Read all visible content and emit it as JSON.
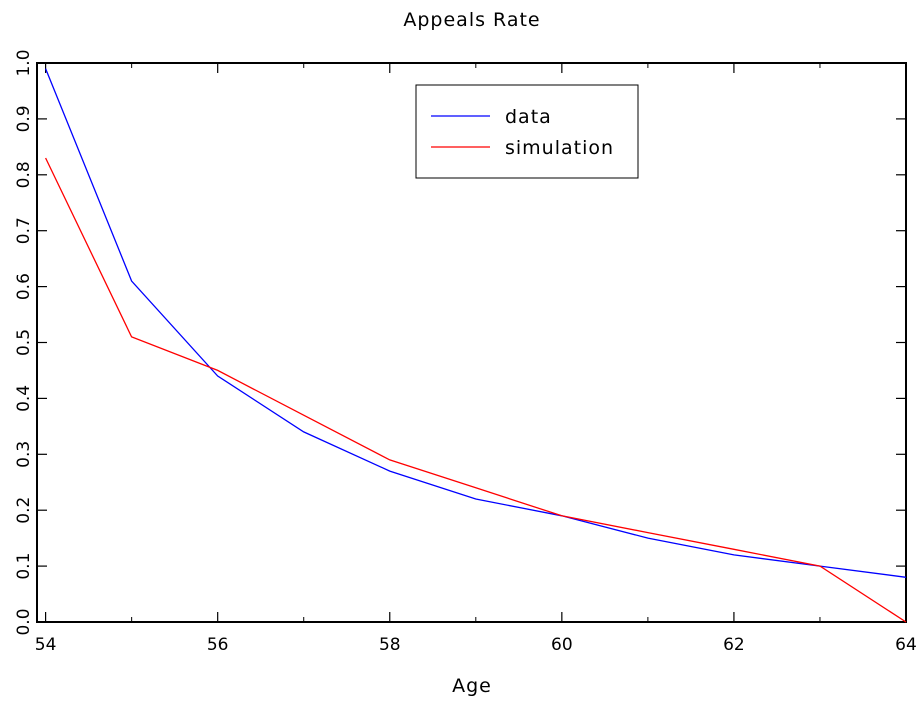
{
  "chart_data": {
    "type": "line",
    "title": "Appeals Rate",
    "xlabel": "Age",
    "ylabel": "",
    "xlim": [
      53.9,
      64
    ],
    "ylim": [
      0,
      1
    ],
    "x_ticks": [
      54,
      56,
      58,
      60,
      62,
      64
    ],
    "x_tick_labels": [
      "54",
      "56",
      "58",
      "60",
      "62",
      "64"
    ],
    "y_ticks": [
      0,
      0.1,
      0.2,
      0.3,
      0.4,
      0.5,
      0.6,
      0.7,
      0.8,
      0.9,
      1.0
    ],
    "y_tick_labels": [
      "0.0",
      "0.1",
      "0.2",
      "0.3",
      "0.4",
      "0.5",
      "0.6",
      "0.7",
      "0.8",
      "0.9",
      "1.0"
    ],
    "grid": false,
    "legend_position": "top-center",
    "x": [
      54,
      55,
      56,
      57,
      58,
      59,
      60,
      61,
      62,
      63,
      64
    ],
    "series": [
      {
        "name": "data",
        "color": "#0000ff",
        "values": [
          0.99,
          0.61,
          0.44,
          0.34,
          0.27,
          0.22,
          0.19,
          0.15,
          0.12,
          0.1,
          0.08
        ]
      },
      {
        "name": "simulation",
        "color": "#ff0000",
        "values": [
          0.83,
          0.51,
          0.45,
          0.37,
          0.29,
          0.24,
          0.19,
          0.16,
          0.13,
          0.1,
          0.0
        ]
      }
    ]
  }
}
